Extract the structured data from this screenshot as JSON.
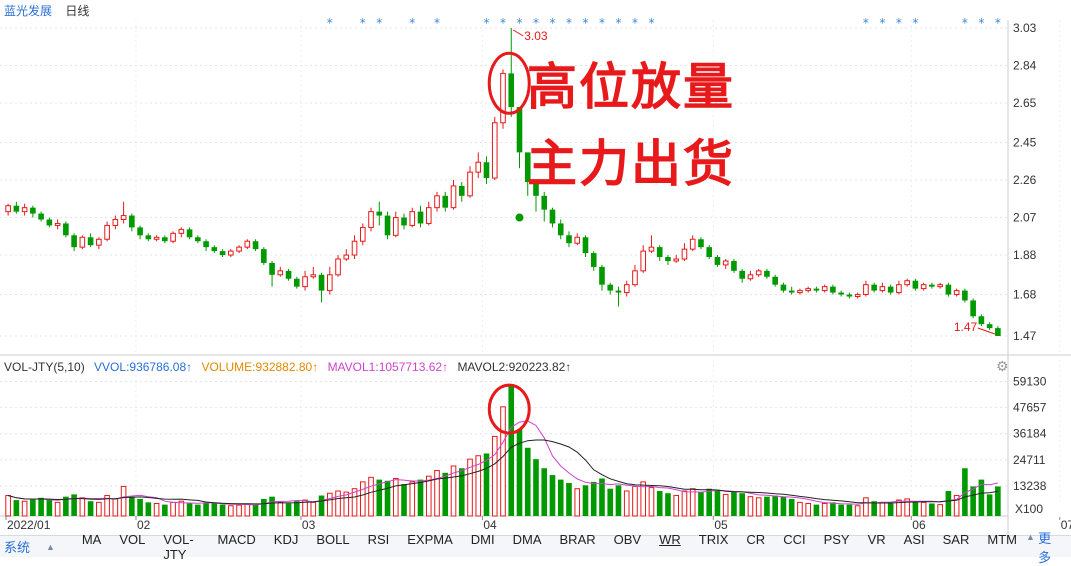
{
  "header": {
    "stock_name": "蓝光发展",
    "period": "日线"
  },
  "annotations": {
    "line1": "高位放量",
    "line2": "主力出货"
  },
  "price_axis": {
    "ticks": [
      "3.03",
      "2.84",
      "2.65",
      "2.45",
      "2.26",
      "2.07",
      "1.88",
      "1.68",
      "1.47"
    ]
  },
  "price_labels": {
    "high": "3.03",
    "low": "1.47"
  },
  "volume_header": {
    "indicator": "VOL-JTY(5,10)",
    "vvol": "VVOL:936786.08↑",
    "volume": "VOLUME:932882.80↑",
    "mavol1": "MAVOL1:1057713.62↑",
    "mavol2": "MAVOL2:920223.82↑"
  },
  "volume_axis": {
    "ticks": [
      "59130",
      "47657",
      "36184",
      "24711",
      "13238"
    ],
    "unit": "X100"
  },
  "date_axis": {
    "labels": [
      "2022/01",
      "02",
      "03",
      "04",
      "05",
      "06",
      "07"
    ]
  },
  "toolbar": {
    "system_label": "系统",
    "more_label": "更多",
    "indicators": [
      "MA",
      "VOL",
      "VOL-JTY",
      "MACD",
      "KDJ",
      "BOLL",
      "RSI",
      "EXPMA",
      "DMI",
      "DMA",
      "BRAR",
      "OBV",
      "WR",
      "TRIX",
      "CR",
      "CCI",
      "PSY",
      "VR",
      "ASI",
      "SAR",
      "MTM"
    ]
  },
  "colors": {
    "up": "#e8191a",
    "down": "#009900",
    "ma1": "#cc44cc",
    "ma2": "#222222",
    "accent": "#2a6fd8"
  },
  "chart_data": {
    "type": "candlestick",
    "ylim": [
      1.4,
      3.1
    ],
    "volume_ylim": [
      0,
      62000
    ],
    "candles": [
      [
        2.1,
        2.13,
        2.14,
        2.08,
        9000
      ],
      [
        2.13,
        2.1,
        2.15,
        2.09,
        7000
      ],
      [
        2.1,
        2.12,
        2.14,
        2.08,
        6500
      ],
      [
        2.12,
        2.09,
        2.13,
        2.07,
        7200
      ],
      [
        2.09,
        2.06,
        2.1,
        2.05,
        8000
      ],
      [
        2.06,
        2.03,
        2.07,
        2.02,
        7000
      ],
      [
        2.03,
        2.04,
        2.06,
        2.01,
        6000
      ],
      [
        2.04,
        1.98,
        2.05,
        1.97,
        8500
      ],
      [
        1.98,
        1.92,
        1.99,
        1.9,
        9500
      ],
      [
        1.92,
        1.97,
        1.98,
        1.91,
        8000
      ],
      [
        1.97,
        1.93,
        1.99,
        1.92,
        6500
      ],
      [
        1.93,
        1.96,
        1.97,
        1.91,
        6000
      ],
      [
        1.96,
        2.03,
        2.05,
        1.95,
        9000
      ],
      [
        2.03,
        2.06,
        2.08,
        2.01,
        7500
      ],
      [
        2.06,
        2.08,
        2.15,
        2.04,
        13000
      ],
      [
        2.08,
        2.02,
        2.09,
        2.0,
        8500
      ],
      [
        2.02,
        1.98,
        2.03,
        1.96,
        7500
      ],
      [
        1.98,
        1.96,
        1.99,
        1.95,
        6000
      ],
      [
        1.96,
        1.97,
        1.98,
        1.95,
        5500
      ],
      [
        1.97,
        1.95,
        1.98,
        1.94,
        5000
      ],
      [
        1.95,
        1.99,
        2.0,
        1.94,
        6000
      ],
      [
        1.99,
        2.01,
        2.02,
        1.97,
        6500
      ],
      [
        2.01,
        1.97,
        2.02,
        1.96,
        5500
      ],
      [
        1.97,
        1.95,
        1.98,
        1.94,
        5000
      ],
      [
        1.95,
        1.92,
        1.96,
        1.9,
        6000
      ],
      [
        1.92,
        1.9,
        1.93,
        1.89,
        5500
      ],
      [
        1.9,
        1.88,
        1.91,
        1.87,
        5000
      ],
      [
        1.88,
        1.9,
        1.91,
        1.87,
        4500
      ],
      [
        1.9,
        1.92,
        1.93,
        1.89,
        4800
      ],
      [
        1.92,
        1.95,
        1.96,
        1.91,
        5200
      ],
      [
        1.95,
        1.91,
        1.96,
        1.9,
        5000
      ],
      [
        1.91,
        1.84,
        1.92,
        1.83,
        7500
      ],
      [
        1.84,
        1.78,
        1.85,
        1.72,
        8500
      ],
      [
        1.78,
        1.8,
        1.82,
        1.77,
        6000
      ],
      [
        1.8,
        1.76,
        1.81,
        1.75,
        5500
      ],
      [
        1.76,
        1.72,
        1.77,
        1.71,
        6500
      ],
      [
        1.72,
        1.77,
        1.8,
        1.7,
        7000
      ],
      [
        1.77,
        1.78,
        1.82,
        1.76,
        6000
      ],
      [
        1.78,
        1.7,
        1.79,
        1.64,
        9000
      ],
      [
        1.7,
        1.78,
        1.82,
        1.68,
        10000
      ],
      [
        1.78,
        1.86,
        1.88,
        1.77,
        11000
      ],
      [
        1.86,
        1.88,
        1.91,
        1.85,
        10500
      ],
      [
        1.88,
        1.95,
        1.98,
        1.86,
        12000
      ],
      [
        1.95,
        2.02,
        2.04,
        1.93,
        15000
      ],
      [
        2.02,
        2.1,
        2.12,
        2.0,
        17000
      ],
      [
        2.1,
        2.08,
        2.15,
        2.03,
        16000
      ],
      [
        2.08,
        1.98,
        2.1,
        1.96,
        15500
      ],
      [
        1.98,
        2.07,
        2.1,
        1.97,
        16500
      ],
      [
        2.07,
        2.03,
        2.09,
        2.01,
        14000
      ],
      [
        2.03,
        2.1,
        2.12,
        2.02,
        15000
      ],
      [
        2.1,
        2.04,
        2.13,
        2.02,
        16000
      ],
      [
        2.04,
        2.12,
        2.15,
        2.03,
        17500
      ],
      [
        2.12,
        2.18,
        2.2,
        2.1,
        20000
      ],
      [
        2.18,
        2.12,
        2.2,
        2.1,
        19000
      ],
      [
        2.12,
        2.23,
        2.26,
        2.11,
        22000
      ],
      [
        2.23,
        2.18,
        2.25,
        2.15,
        21000
      ],
      [
        2.18,
        2.3,
        2.33,
        2.17,
        25000
      ],
      [
        2.3,
        2.35,
        2.4,
        2.27,
        26500
      ],
      [
        2.35,
        2.27,
        2.38,
        2.24,
        27500
      ],
      [
        2.27,
        2.55,
        2.58,
        2.26,
        35000
      ],
      [
        2.55,
        2.8,
        2.82,
        2.52,
        48000
      ],
      [
        2.8,
        2.63,
        3.03,
        2.58,
        58000
      ],
      [
        2.63,
        2.4,
        2.55,
        2.32,
        38000
      ],
      [
        2.4,
        2.25,
        2.3,
        2.18,
        30000
      ],
      [
        2.25,
        2.18,
        2.24,
        2.1,
        25000
      ],
      [
        2.18,
        2.11,
        2.2,
        2.05,
        21000
      ],
      [
        2.11,
        2.04,
        2.12,
        2.02,
        18000
      ],
      [
        2.04,
        1.98,
        2.06,
        1.96,
        16000
      ],
      [
        1.98,
        1.94,
        2.0,
        1.92,
        14500
      ],
      [
        1.94,
        1.97,
        1.99,
        1.93,
        12000
      ],
      [
        1.97,
        1.89,
        1.98,
        1.87,
        13500
      ],
      [
        1.89,
        1.82,
        1.9,
        1.8,
        15000
      ],
      [
        1.82,
        1.73,
        1.83,
        1.7,
        16500
      ],
      [
        1.73,
        1.7,
        1.74,
        1.68,
        12000
      ],
      [
        1.7,
        1.69,
        1.72,
        1.62,
        13500
      ],
      [
        1.69,
        1.73,
        1.75,
        1.67,
        11000
      ],
      [
        1.73,
        1.8,
        1.83,
        1.72,
        13000
      ],
      [
        1.8,
        1.9,
        1.93,
        1.79,
        15000
      ],
      [
        1.9,
        1.92,
        1.98,
        1.89,
        12500
      ],
      [
        1.92,
        1.87,
        1.93,
        1.85,
        11000
      ],
      [
        1.87,
        1.85,
        1.88,
        1.83,
        10000
      ],
      [
        1.85,
        1.86,
        1.88,
        1.84,
        9000
      ],
      [
        1.86,
        1.91,
        1.94,
        1.85,
        11000
      ],
      [
        1.91,
        1.96,
        1.98,
        1.9,
        12000
      ],
      [
        1.96,
        1.92,
        1.97,
        1.91,
        10500
      ],
      [
        1.92,
        1.87,
        1.93,
        1.86,
        12000
      ],
      [
        1.87,
        1.83,
        1.88,
        1.82,
        11500
      ],
      [
        1.83,
        1.85,
        1.86,
        1.81,
        9500
      ],
      [
        1.85,
        1.8,
        1.86,
        1.79,
        10500
      ],
      [
        1.8,
        1.76,
        1.81,
        1.74,
        10000
      ],
      [
        1.76,
        1.78,
        1.8,
        1.75,
        8500
      ],
      [
        1.78,
        1.8,
        1.81,
        1.77,
        8000
      ],
      [
        1.8,
        1.77,
        1.81,
        1.76,
        8500
      ],
      [
        1.77,
        1.73,
        1.78,
        1.72,
        9000
      ],
      [
        1.73,
        1.7,
        1.74,
        1.69,
        8500
      ],
      [
        1.7,
        1.69,
        1.72,
        1.68,
        7500
      ],
      [
        1.69,
        1.7,
        1.71,
        1.68,
        6000
      ],
      [
        1.7,
        1.71,
        1.72,
        1.69,
        5500
      ],
      [
        1.71,
        1.7,
        1.72,
        1.69,
        5000
      ],
      [
        1.7,
        1.72,
        1.73,
        1.69,
        5500
      ],
      [
        1.72,
        1.69,
        1.73,
        1.68,
        6000
      ],
      [
        1.69,
        1.68,
        1.7,
        1.67,
        5000
      ],
      [
        1.68,
        1.67,
        1.69,
        1.66,
        5000
      ],
      [
        1.67,
        1.68,
        1.69,
        1.66,
        4500
      ],
      [
        1.68,
        1.73,
        1.75,
        1.67,
        8000
      ],
      [
        1.73,
        1.7,
        1.74,
        1.69,
        6500
      ],
      [
        1.7,
        1.72,
        1.74,
        1.69,
        6000
      ],
      [
        1.72,
        1.69,
        1.73,
        1.68,
        5500
      ],
      [
        1.69,
        1.73,
        1.75,
        1.68,
        7000
      ],
      [
        1.73,
        1.75,
        1.76,
        1.72,
        7500
      ],
      [
        1.75,
        1.71,
        1.76,
        1.7,
        6500
      ],
      [
        1.71,
        1.73,
        1.74,
        1.7,
        6000
      ],
      [
        1.73,
        1.72,
        1.74,
        1.71,
        5500
      ],
      [
        1.72,
        1.73,
        1.74,
        1.71,
        5000
      ],
      [
        1.73,
        1.68,
        1.74,
        1.67,
        11000
      ],
      [
        1.68,
        1.7,
        1.71,
        1.67,
        9000
      ],
      [
        1.7,
        1.65,
        1.71,
        1.64,
        21000
      ],
      [
        1.65,
        1.57,
        1.66,
        1.56,
        13000
      ],
      [
        1.57,
        1.53,
        1.58,
        1.52,
        16000
      ],
      [
        1.53,
        1.51,
        1.54,
        1.5,
        9500
      ],
      [
        1.51,
        1.47,
        1.52,
        1.47,
        13000
      ]
    ]
  }
}
